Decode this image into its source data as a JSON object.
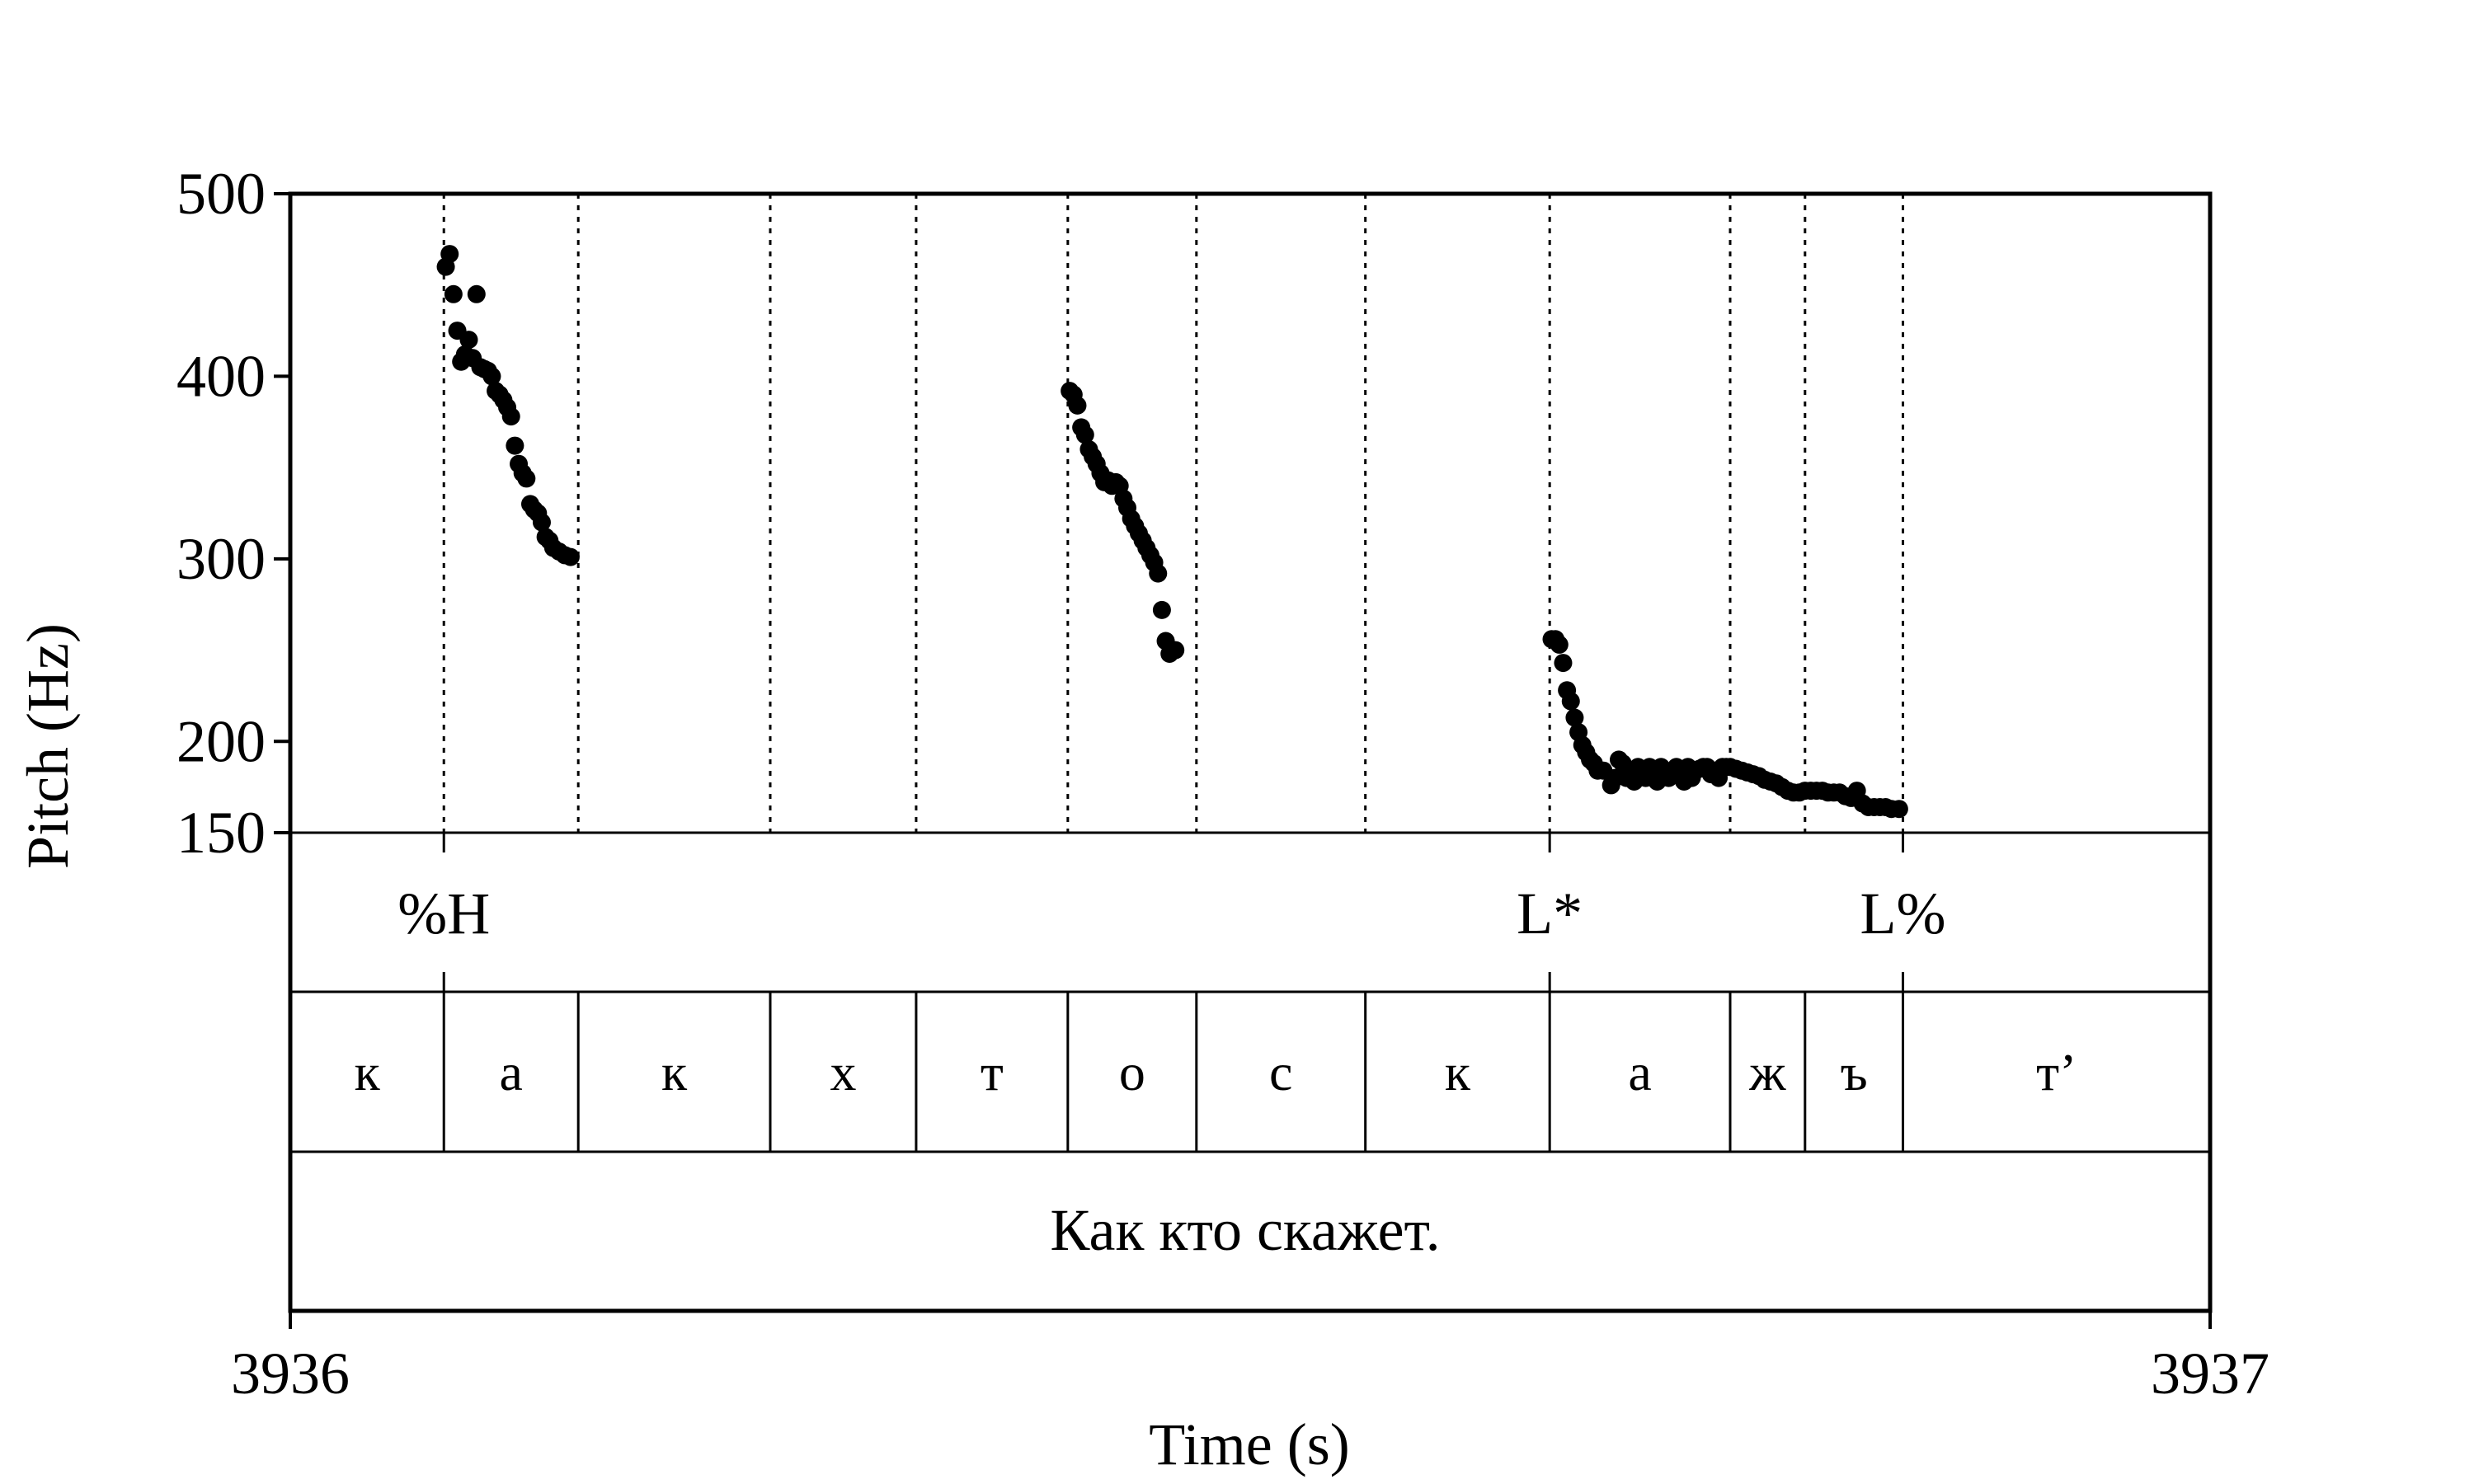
{
  "chart_data": {
    "type": "scatter",
    "xlabel": "Time (s)",
    "ylabel": "Pitch (Hz)",
    "xlim": [
      3936,
      3937
    ],
    "ylim": [
      150,
      500
    ],
    "x_ticks": [
      "3936",
      "3937"
    ],
    "y_ticks": [
      {
        "value": 500,
        "label": "500"
      },
      {
        "value": 400,
        "label": "400"
      },
      {
        "value": 300,
        "label": "300"
      },
      {
        "value": 200,
        "label": "200"
      },
      {
        "value": 150,
        "label": "150"
      }
    ],
    "boundaries": [
      3936.08,
      3936.15,
      3936.25,
      3936.326,
      3936.405,
      3936.472,
      3936.56,
      3936.656,
      3936.75,
      3936.789,
      3936.84
    ],
    "tones": [
      {
        "label": "%H",
        "time": 3936.08
      },
      {
        "label": "L*",
        "time": 3936.656
      },
      {
        "label": "L%",
        "time": 3936.84
      }
    ],
    "segments": [
      {
        "label": "к",
        "start": 3936.0,
        "end": 3936.08
      },
      {
        "label": "а",
        "start": 3936.08,
        "end": 3936.15
      },
      {
        "label": "к",
        "start": 3936.15,
        "end": 3936.25
      },
      {
        "label": "х",
        "start": 3936.25,
        "end": 3936.326
      },
      {
        "label": "т",
        "start": 3936.326,
        "end": 3936.405
      },
      {
        "label": "о",
        "start": 3936.405,
        "end": 3936.472
      },
      {
        "label": "с",
        "start": 3936.472,
        "end": 3936.56
      },
      {
        "label": "к",
        "start": 3936.56,
        "end": 3936.656
      },
      {
        "label": "а",
        "start": 3936.656,
        "end": 3936.75
      },
      {
        "label": "ж",
        "start": 3936.75,
        "end": 3936.789
      },
      {
        "label": "ъ",
        "start": 3936.789,
        "end": 3936.84
      },
      {
        "label": "т’",
        "start": 3936.84,
        "end": 3937.0
      }
    ],
    "utterance": "Как кто скажет.",
    "series": [
      {
        "points": [
          [
            3936.081,
            460
          ],
          [
            3936.083,
            467
          ],
          [
            3936.085,
            445
          ],
          [
            3936.087,
            425
          ],
          [
            3936.089,
            408
          ],
          [
            3936.091,
            412
          ],
          [
            3936.093,
            420
          ],
          [
            3936.095,
            410
          ],
          [
            3936.097,
            445
          ],
          [
            3936.099,
            405
          ],
          [
            3936.101,
            404
          ],
          [
            3936.103,
            403
          ],
          [
            3936.105,
            400
          ],
          [
            3936.107,
            392
          ],
          [
            3936.109,
            390
          ],
          [
            3936.111,
            387
          ],
          [
            3936.113,
            383
          ],
          [
            3936.115,
            378
          ],
          [
            3936.117,
            362
          ],
          [
            3936.119,
            352
          ],
          [
            3936.121,
            347
          ],
          [
            3936.123,
            344
          ],
          [
            3936.125,
            330
          ],
          [
            3936.127,
            327
          ],
          [
            3936.129,
            325
          ],
          [
            3936.131,
            320
          ],
          [
            3936.133,
            312
          ],
          [
            3936.135,
            310
          ],
          [
            3936.137,
            306
          ],
          [
            3936.14,
            304
          ],
          [
            3936.143,
            302
          ],
          [
            3936.146,
            301
          ],
          [
            3936.406,
            392
          ],
          [
            3936.408,
            390
          ],
          [
            3936.41,
            384
          ],
          [
            3936.412,
            372
          ],
          [
            3936.414,
            368
          ],
          [
            3936.416,
            360
          ],
          [
            3936.418,
            356
          ],
          [
            3936.42,
            352
          ],
          [
            3936.422,
            347
          ],
          [
            3936.424,
            342
          ],
          [
            3936.426,
            343
          ],
          [
            3936.428,
            340
          ],
          [
            3936.43,
            342
          ],
          [
            3936.432,
            340
          ],
          [
            3936.434,
            333
          ],
          [
            3936.436,
            328
          ],
          [
            3936.438,
            322
          ],
          [
            3936.44,
            318
          ],
          [
            3936.442,
            314
          ],
          [
            3936.444,
            310
          ],
          [
            3936.446,
            306
          ],
          [
            3936.448,
            302
          ],
          [
            3936.45,
            298
          ],
          [
            3936.452,
            292
          ],
          [
            3936.454,
            272
          ],
          [
            3936.456,
            255
          ],
          [
            3936.458,
            248
          ],
          [
            3936.461,
            250
          ],
          [
            3936.657,
            256
          ],
          [
            3936.659,
            256
          ],
          [
            3936.661,
            253
          ],
          [
            3936.663,
            243
          ],
          [
            3936.665,
            228
          ],
          [
            3936.667,
            222
          ],
          [
            3936.669,
            213
          ],
          [
            3936.671,
            205
          ],
          [
            3936.673,
            198
          ],
          [
            3936.675,
            194
          ],
          [
            3936.677,
            190
          ],
          [
            3936.679,
            188
          ],
          [
            3936.681,
            184
          ],
          [
            3936.684,
            184
          ],
          [
            3936.688,
            176
          ],
          [
            3936.69,
            180
          ],
          [
            3936.692,
            190
          ],
          [
            3936.694,
            188
          ],
          [
            3936.696,
            180
          ],
          [
            3936.698,
            184
          ],
          [
            3936.7,
            178
          ],
          [
            3936.702,
            186
          ],
          [
            3936.704,
            182
          ],
          [
            3936.706,
            180
          ],
          [
            3936.708,
            186
          ],
          [
            3936.71,
            180
          ],
          [
            3936.712,
            178
          ],
          [
            3936.714,
            186
          ],
          [
            3936.716,
            184
          ],
          [
            3936.718,
            180
          ],
          [
            3936.72,
            184
          ],
          [
            3936.722,
            186
          ],
          [
            3936.724,
            182
          ],
          [
            3936.726,
            178
          ],
          [
            3936.728,
            186
          ],
          [
            3936.73,
            180
          ],
          [
            3936.732,
            184
          ],
          [
            3936.734,
            185
          ],
          [
            3936.736,
            186
          ],
          [
            3936.738,
            186
          ],
          [
            3936.74,
            182
          ],
          [
            3936.742,
            184
          ],
          [
            3936.744,
            180
          ],
          [
            3936.746,
            186
          ],
          [
            3936.748,
            186
          ],
          [
            3936.75,
            186
          ],
          [
            3936.753,
            185
          ],
          [
            3936.756,
            184
          ],
          [
            3936.759,
            183
          ],
          [
            3936.762,
            182
          ],
          [
            3936.765,
            181
          ],
          [
            3936.768,
            179
          ],
          [
            3936.771,
            178
          ],
          [
            3936.774,
            177
          ],
          [
            3936.777,
            175
          ],
          [
            3936.78,
            173
          ],
          [
            3936.783,
            172
          ],
          [
            3936.786,
            172
          ],
          [
            3936.789,
            173
          ],
          [
            3936.792,
            173
          ],
          [
            3936.795,
            173
          ],
          [
            3936.798,
            173
          ],
          [
            3936.801,
            172
          ],
          [
            3936.804,
            172
          ],
          [
            3936.807,
            172
          ],
          [
            3936.81,
            170
          ],
          [
            3936.813,
            169
          ],
          [
            3936.816,
            173
          ],
          [
            3936.819,
            166
          ],
          [
            3936.822,
            164
          ],
          [
            3936.825,
            164
          ],
          [
            3936.828,
            164
          ],
          [
            3936.831,
            164
          ],
          [
            3936.834,
            163
          ],
          [
            3936.838,
            163
          ]
        ]
      }
    ]
  }
}
